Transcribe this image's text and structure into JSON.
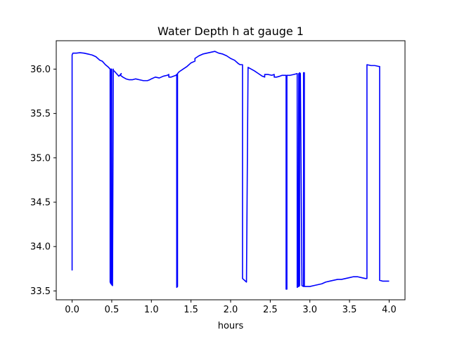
{
  "chart_data": {
    "type": "line",
    "title": "Water Depth h at gauge 1",
    "xlabel": "hours",
    "ylabel": "",
    "xlim": [
      -0.2,
      4.2
    ],
    "ylim": [
      33.4,
      36.32
    ],
    "xticks": [
      0.0,
      0.5,
      1.0,
      1.5,
      2.0,
      2.5,
      3.0,
      3.5,
      4.0
    ],
    "xtick_labels": [
      "0.0",
      "0.5",
      "1.0",
      "1.5",
      "2.0",
      "2.5",
      "3.0",
      "3.5",
      "4.0"
    ],
    "yticks": [
      33.5,
      34.0,
      34.5,
      35.0,
      35.5,
      36.0
    ],
    "ytick_labels": [
      "33.5",
      "34.0",
      "34.5",
      "35.0",
      "35.5",
      "36.0"
    ],
    "grid": false,
    "legend": false,
    "series": [
      {
        "color": "#0000ff",
        "x": [
          0.0,
          0.0,
          0.01,
          0.05,
          0.1,
          0.15,
          0.2,
          0.25,
          0.3,
          0.35,
          0.38,
          0.42,
          0.46,
          0.48,
          0.48,
          0.49,
          0.49,
          0.5,
          0.5,
          0.51,
          0.52,
          0.52,
          0.53,
          0.56,
          0.59,
          0.62,
          0.61,
          0.64,
          0.68,
          0.72,
          0.76,
          0.8,
          0.85,
          0.9,
          0.95,
          0.98,
          1.0,
          1.05,
          1.1,
          1.15,
          1.2,
          1.22,
          1.22,
          1.25,
          1.28,
          1.31,
          1.32,
          1.32,
          1.33,
          1.33,
          1.35,
          1.4,
          1.45,
          1.5,
          1.55,
          1.55,
          1.6,
          1.65,
          1.7,
          1.75,
          1.8,
          1.85,
          1.9,
          1.95,
          2.0,
          2.05,
          2.1,
          2.12,
          2.15,
          2.15,
          2.2,
          2.2,
          2.22,
          2.26,
          2.3,
          2.35,
          2.4,
          2.43,
          2.43,
          2.47,
          2.52,
          2.55,
          2.55,
          2.58,
          2.62,
          2.65,
          2.68,
          2.7,
          2.7,
          2.71,
          2.71,
          2.75,
          2.8,
          2.84,
          2.84,
          2.85,
          2.86,
          2.86,
          2.87,
          2.87,
          2.88,
          2.9,
          2.92,
          2.92,
          2.93,
          2.93,
          3.0,
          3.05,
          3.1,
          3.15,
          3.2,
          3.25,
          3.3,
          3.35,
          3.4,
          3.45,
          3.5,
          3.55,
          3.6,
          3.65,
          3.7,
          3.72,
          3.72,
          3.77,
          3.82,
          3.87,
          3.88,
          3.88,
          3.92,
          3.98,
          4.0
        ],
        "y": [
          33.73,
          36.16,
          36.18,
          36.18,
          36.185,
          36.18,
          36.17,
          36.16,
          36.14,
          36.1,
          36.09,
          36.05,
          36.02,
          36.0,
          33.6,
          33.58,
          36.0,
          36.0,
          33.57,
          33.56,
          36.0,
          35.98,
          35.98,
          35.95,
          35.92,
          35.95,
          35.93,
          35.91,
          35.89,
          35.88,
          35.88,
          35.89,
          35.88,
          35.87,
          35.87,
          35.88,
          35.89,
          35.91,
          35.9,
          35.92,
          35.93,
          35.94,
          35.91,
          35.91,
          35.92,
          35.93,
          35.94,
          33.54,
          33.55,
          35.95,
          35.97,
          36.0,
          36.03,
          36.07,
          36.09,
          36.12,
          36.15,
          36.17,
          36.18,
          36.19,
          36.2,
          36.18,
          36.17,
          36.15,
          36.12,
          36.1,
          36.06,
          36.05,
          36.05,
          33.64,
          33.6,
          33.6,
          36.02,
          36.0,
          35.98,
          35.95,
          35.92,
          35.91,
          35.94,
          35.94,
          35.93,
          35.94,
          35.91,
          35.91,
          35.92,
          35.93,
          35.93,
          35.93,
          33.52,
          33.52,
          35.93,
          35.93,
          35.94,
          35.95,
          33.54,
          33.55,
          35.95,
          33.55,
          33.56,
          35.96,
          35.95,
          33.56,
          33.55,
          35.96,
          35.96,
          33.55,
          33.55,
          33.56,
          33.57,
          33.58,
          33.6,
          33.61,
          33.62,
          33.63,
          33.63,
          33.64,
          33.65,
          33.66,
          33.66,
          33.65,
          33.64,
          33.64,
          36.05,
          36.04,
          36.04,
          36.03,
          36.03,
          33.62,
          33.61,
          33.61,
          33.61
        ]
      }
    ]
  }
}
